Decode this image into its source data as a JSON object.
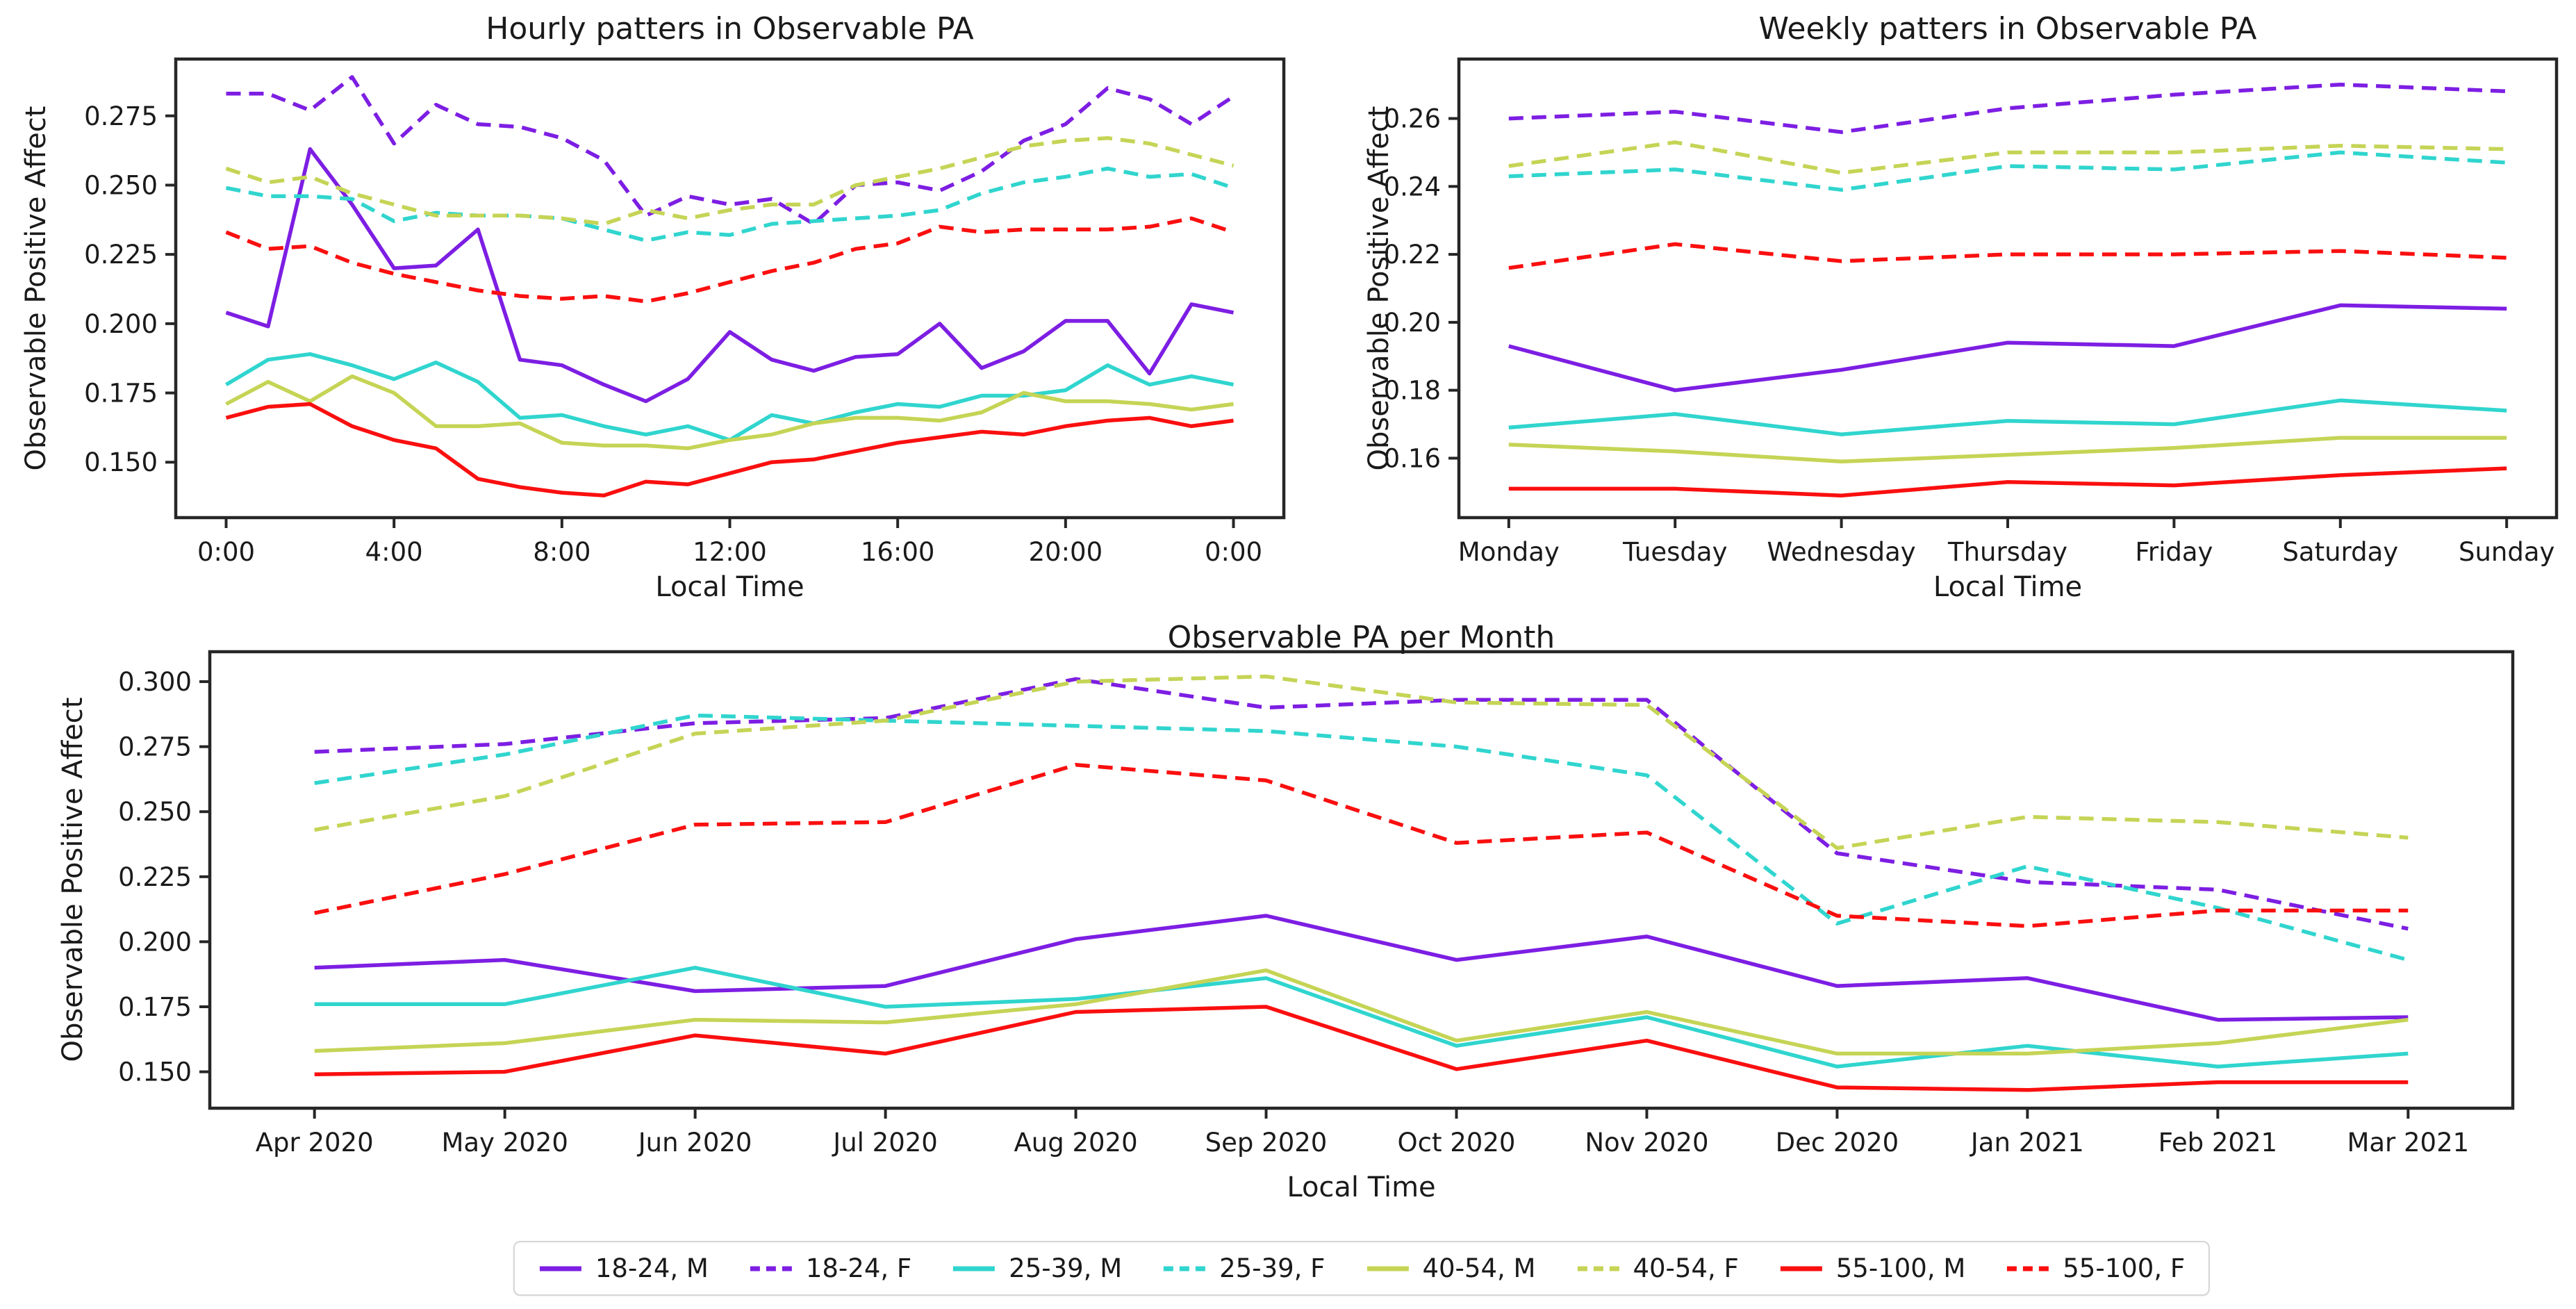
{
  "figure": {
    "background": "#ffffff",
    "text_color": "#1a1a1a",
    "spine_color": "#262626"
  },
  "colors": {
    "purple": "#7D1EE3",
    "cyan": "#30D5CE",
    "khaki": "#C5D455",
    "red": "#FA0F0F"
  },
  "legend": {
    "items": [
      {
        "label": "18-24, M",
        "color": "#7D1EE3",
        "dashed": false
      },
      {
        "label": "18-24, F",
        "color": "#7D1EE3",
        "dashed": true
      },
      {
        "label": "25-39, M",
        "color": "#30D5CE",
        "dashed": false
      },
      {
        "label": "25-39, F",
        "color": "#30D5CE",
        "dashed": true
      },
      {
        "label": "40-54, M",
        "color": "#C5D455",
        "dashed": false
      },
      {
        "label": "40-54, F",
        "color": "#C5D455",
        "dashed": true
      },
      {
        "label": "55-100, M",
        "color": "#FA0F0F",
        "dashed": false
      },
      {
        "label": "55-100, F",
        "color": "#FA0F0F",
        "dashed": true
      }
    ]
  },
  "chart_data": [
    {
      "type": "line",
      "title": "Hourly patters in Observable PA",
      "xlabel": "Local Time",
      "ylabel": "Observable Positive Affect",
      "n_points": 25,
      "x_tick_positions": [
        0,
        4,
        8,
        12,
        16,
        20,
        24
      ],
      "x_tick_labels": [
        "0:00",
        "4:00",
        "8:00",
        "12:00",
        "16:00",
        "20:00",
        "0:00"
      ],
      "ylim": [
        0.13,
        0.2955
      ],
      "y_tick_values": [
        0.15,
        0.175,
        0.2,
        0.225,
        0.25,
        0.275
      ],
      "y_tick_labels": [
        "0.150",
        "0.175",
        "0.200",
        "0.225",
        "0.250",
        "0.275"
      ],
      "grid": false,
      "series": [
        {
          "name": "18-24, M",
          "color": "#7D1EE3",
          "dashed": false,
          "values": [
            0.204,
            0.199,
            0.263,
            0.243,
            0.22,
            0.221,
            0.234,
            0.187,
            0.185,
            0.178,
            0.172,
            0.18,
            0.197,
            0.187,
            0.183,
            0.188,
            0.189,
            0.2,
            0.184,
            0.19,
            0.201,
            0.201,
            0.182,
            0.207,
            0.204
          ]
        },
        {
          "name": "18-24, F",
          "color": "#7D1EE3",
          "dashed": true,
          "values": [
            0.283,
            0.283,
            0.277,
            0.289,
            0.265,
            0.279,
            0.272,
            0.271,
            0.267,
            0.259,
            0.239,
            0.246,
            0.243,
            0.245,
            0.236,
            0.25,
            0.251,
            0.248,
            0.255,
            0.266,
            0.272,
            0.285,
            0.281,
            0.272,
            0.282
          ]
        },
        {
          "name": "25-39, M",
          "color": "#30D5CE",
          "dashed": false,
          "values": [
            0.178,
            0.187,
            0.189,
            0.185,
            0.18,
            0.186,
            0.179,
            0.166,
            0.167,
            0.163,
            0.16,
            0.163,
            0.158,
            0.167,
            0.164,
            0.168,
            0.171,
            0.17,
            0.174,
            0.174,
            0.176,
            0.185,
            0.178,
            0.181,
            0.178
          ]
        },
        {
          "name": "25-39, F",
          "color": "#30D5CE",
          "dashed": true,
          "values": [
            0.249,
            0.246,
            0.246,
            0.245,
            0.237,
            0.24,
            0.239,
            0.239,
            0.238,
            0.234,
            0.23,
            0.233,
            0.232,
            0.236,
            0.237,
            0.238,
            0.239,
            0.241,
            0.247,
            0.251,
            0.253,
            0.256,
            0.253,
            0.254,
            0.249
          ]
        },
        {
          "name": "40-54, M",
          "color": "#C5D455",
          "dashed": false,
          "values": [
            0.171,
            0.179,
            0.172,
            0.181,
            0.175,
            0.163,
            0.163,
            0.164,
            0.157,
            0.156,
            0.156,
            0.155,
            0.158,
            0.16,
            0.164,
            0.166,
            0.166,
            0.165,
            0.168,
            0.175,
            0.172,
            0.172,
            0.171,
            0.169,
            0.171
          ]
        },
        {
          "name": "40-54, F",
          "color": "#C5D455",
          "dashed": true,
          "values": [
            0.256,
            0.251,
            0.253,
            0.247,
            0.243,
            0.239,
            0.239,
            0.239,
            0.238,
            0.236,
            0.241,
            0.238,
            0.241,
            0.243,
            0.243,
            0.25,
            0.253,
            0.256,
            0.26,
            0.264,
            0.266,
            0.267,
            0.265,
            0.261,
            0.257
          ]
        },
        {
          "name": "55-100, M",
          "color": "#FA0F0F",
          "dashed": false,
          "values": [
            0.166,
            0.17,
            0.171,
            0.163,
            0.158,
            0.155,
            0.144,
            0.141,
            0.139,
            0.138,
            0.143,
            0.142,
            0.146,
            0.15,
            0.151,
            0.154,
            0.157,
            0.159,
            0.161,
            0.16,
            0.163,
            0.165,
            0.166,
            0.163,
            0.165
          ]
        },
        {
          "name": "55-100, F",
          "color": "#FA0F0F",
          "dashed": true,
          "values": [
            0.233,
            0.227,
            0.228,
            0.222,
            0.218,
            0.215,
            0.212,
            0.21,
            0.209,
            0.21,
            0.208,
            0.211,
            0.215,
            0.219,
            0.222,
            0.227,
            0.229,
            0.235,
            0.233,
            0.234,
            0.234,
            0.234,
            0.235,
            0.238,
            0.233
          ]
        }
      ]
    },
    {
      "type": "line",
      "title": "Weekly patters in Observable PA",
      "xlabel": "Local Time",
      "ylabel": "Observable Positive Affect",
      "n_points": 7,
      "x_tick_positions": [
        0,
        1,
        2,
        3,
        4,
        5,
        6
      ],
      "x_tick_labels": [
        "Monday",
        "Tuesday",
        "Wednesday",
        "Thursday",
        "Friday",
        "Saturday",
        "Sunday"
      ],
      "ylim": [
        0.1425,
        0.2775
      ],
      "y_tick_values": [
        0.16,
        0.18,
        0.2,
        0.22,
        0.24,
        0.26
      ],
      "y_tick_labels": [
        "0.16",
        "0.18",
        "0.20",
        "0.22",
        "0.24",
        "0.26"
      ],
      "grid": false,
      "series": [
        {
          "name": "18-24, M",
          "color": "#7D1EE3",
          "dashed": false,
          "values": [
            0.193,
            0.18,
            0.186,
            0.194,
            0.193,
            0.205,
            0.204
          ]
        },
        {
          "name": "18-24, F",
          "color": "#7D1EE3",
          "dashed": true,
          "values": [
            0.26,
            0.262,
            0.256,
            0.263,
            0.267,
            0.27,
            0.268
          ]
        },
        {
          "name": "25-39, M",
          "color": "#30D5CE",
          "dashed": false,
          "values": [
            0.169,
            0.173,
            0.167,
            0.171,
            0.17,
            0.177,
            0.174
          ]
        },
        {
          "name": "25-39, F",
          "color": "#30D5CE",
          "dashed": true,
          "values": [
            0.243,
            0.245,
            0.239,
            0.246,
            0.245,
            0.25,
            0.247
          ]
        },
        {
          "name": "40-54, M",
          "color": "#C5D455",
          "dashed": false,
          "values": [
            0.164,
            0.162,
            0.159,
            0.161,
            0.163,
            0.166,
            0.166
          ]
        },
        {
          "name": "40-54, F",
          "color": "#C5D455",
          "dashed": true,
          "values": [
            0.246,
            0.253,
            0.244,
            0.25,
            0.25,
            0.252,
            0.251
          ]
        },
        {
          "name": "55-100, M",
          "color": "#FA0F0F",
          "dashed": false,
          "values": [
            0.151,
            0.151,
            0.149,
            0.153,
            0.152,
            0.155,
            0.157
          ]
        },
        {
          "name": "55-100, F",
          "color": "#FA0F0F",
          "dashed": true,
          "values": [
            0.216,
            0.223,
            0.218,
            0.22,
            0.22,
            0.221,
            0.219
          ]
        }
      ]
    },
    {
      "type": "line",
      "title": "Observable PA per Month",
      "xlabel": "Local Time",
      "ylabel": "Observable Positive Affect",
      "n_points": 12,
      "x_tick_positions": [
        0,
        1,
        2,
        3,
        4,
        5,
        6,
        7,
        8,
        9,
        10,
        11
      ],
      "x_tick_labels": [
        "Apr 2020",
        "May 2020",
        "Jun 2020",
        "Jul 2020",
        "Aug 2020",
        "Sep 2020",
        "Oct 2020",
        "Nov 2020",
        "Dec 2020",
        "Jan 2021",
        "Feb 2021",
        "Mar 2021"
      ],
      "ylim": [
        0.136,
        0.3115
      ],
      "y_tick_values": [
        0.15,
        0.175,
        0.2,
        0.225,
        0.25,
        0.275,
        0.3
      ],
      "y_tick_labels": [
        "0.150",
        "0.175",
        "0.200",
        "0.225",
        "0.250",
        "0.275",
        "0.300"
      ],
      "grid": false,
      "series": [
        {
          "name": "18-24, M",
          "color": "#7D1EE3",
          "dashed": false,
          "values": [
            0.19,
            0.193,
            0.181,
            0.183,
            0.201,
            0.21,
            0.193,
            0.202,
            0.183,
            0.186,
            0.17,
            0.171
          ]
        },
        {
          "name": "18-24, F",
          "color": "#7D1EE3",
          "dashed": true,
          "values": [
            0.273,
            0.276,
            0.284,
            0.286,
            0.301,
            0.29,
            0.293,
            0.293,
            0.234,
            0.223,
            0.22,
            0.205
          ]
        },
        {
          "name": "25-39, M",
          "color": "#30D5CE",
          "dashed": false,
          "values": [
            0.176,
            0.176,
            0.19,
            0.175,
            0.178,
            0.186,
            0.16,
            0.171,
            0.152,
            0.16,
            0.152,
            0.157
          ]
        },
        {
          "name": "25-39, F",
          "color": "#30D5CE",
          "dashed": true,
          "values": [
            0.261,
            0.272,
            0.287,
            0.285,
            0.283,
            0.281,
            0.275,
            0.264,
            0.207,
            0.229,
            0.213,
            0.193
          ]
        },
        {
          "name": "40-54, M",
          "color": "#C5D455",
          "dashed": false,
          "values": [
            0.158,
            0.161,
            0.17,
            0.169,
            0.176,
            0.189,
            0.162,
            0.173,
            0.157,
            0.157,
            0.161,
            0.17
          ]
        },
        {
          "name": "40-54, F",
          "color": "#C5D455",
          "dashed": true,
          "values": [
            0.243,
            0.256,
            0.28,
            0.285,
            0.3,
            0.302,
            0.292,
            0.291,
            0.236,
            0.248,
            0.246,
            0.24
          ]
        },
        {
          "name": "55-100, M",
          "color": "#FA0F0F",
          "dashed": false,
          "values": [
            0.149,
            0.15,
            0.164,
            0.157,
            0.173,
            0.175,
            0.151,
            0.162,
            0.144,
            0.143,
            0.146,
            0.146
          ]
        },
        {
          "name": "55-100, F",
          "color": "#FA0F0F",
          "dashed": true,
          "values": [
            0.211,
            0.226,
            0.245,
            0.246,
            0.268,
            0.262,
            0.238,
            0.242,
            0.21,
            0.206,
            0.212,
            0.212
          ]
        }
      ]
    }
  ]
}
